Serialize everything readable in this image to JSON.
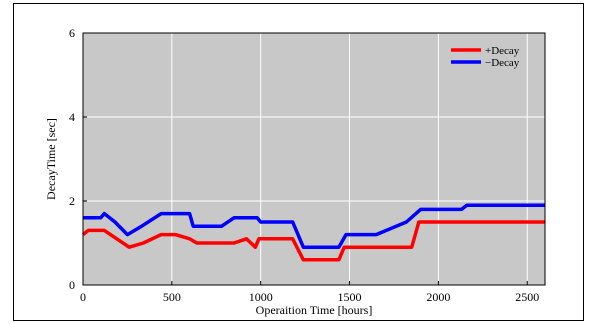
{
  "chart_data": {
    "type": "line",
    "title": "",
    "xlabel": "Operaition Time [hours]",
    "ylabel": "DecayTime [sec]",
    "xlim": [
      0,
      2600
    ],
    "ylim": [
      0,
      6
    ],
    "xticks": [
      0,
      500,
      1000,
      1500,
      2000,
      2500
    ],
    "yticks": [
      0,
      2,
      4,
      6
    ],
    "grid": true,
    "legend_position": "top-right",
    "plot_background": "#c8c8c8",
    "gridline_color": "#ffffff",
    "series": [
      {
        "name": "+Decay",
        "color": "#ff0000",
        "x": [
          0,
          30,
          120,
          260,
          340,
          440,
          520,
          600,
          640,
          850,
          920,
          970,
          990,
          1000,
          1180,
          1240,
          1440,
          1470,
          1850,
          1890,
          2600
        ],
        "y": [
          1.2,
          1.3,
          1.3,
          0.9,
          1.0,
          1.2,
          1.2,
          1.1,
          1.0,
          1.0,
          1.1,
          0.9,
          1.1,
          1.1,
          1.1,
          0.6,
          0.6,
          0.9,
          0.9,
          1.5,
          1.5
        ]
      },
      {
        "name": "−Decay",
        "color": "#0000ff",
        "x": [
          0,
          100,
          120,
          180,
          250,
          330,
          440,
          600,
          620,
          780,
          850,
          980,
          1000,
          1180,
          1240,
          1440,
          1480,
          1650,
          1820,
          1900,
          2130,
          2160,
          2600
        ],
        "y": [
          1.6,
          1.6,
          1.7,
          1.5,
          1.2,
          1.4,
          1.7,
          1.7,
          1.4,
          1.4,
          1.6,
          1.6,
          1.5,
          1.5,
          0.9,
          0.9,
          1.2,
          1.2,
          1.5,
          1.8,
          1.8,
          1.9,
          1.9
        ]
      }
    ]
  }
}
